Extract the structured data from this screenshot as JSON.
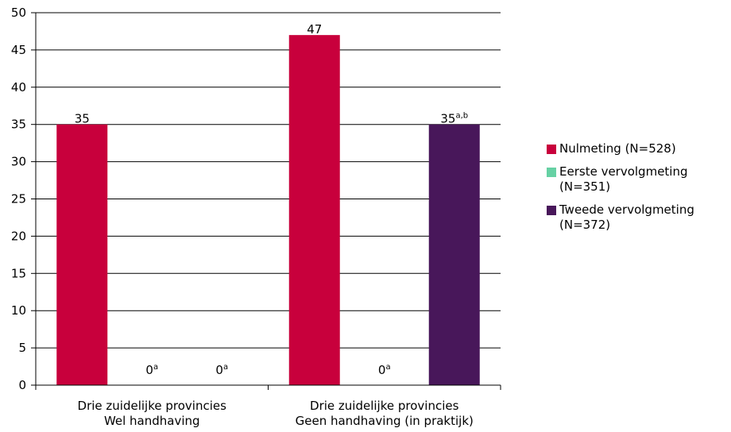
{
  "chart_data": {
    "type": "bar",
    "title": "",
    "xlabel": "",
    "ylabel": "",
    "ylim": [
      0,
      50
    ],
    "yticks": [
      "0",
      "5",
      "10",
      "15",
      "20",
      "25",
      "30",
      "35",
      "40",
      "45",
      "50"
    ],
    "grid": true,
    "legend_position": "right",
    "categories": [
      [
        "Drie zuidelijke provincies",
        "Wel handhaving"
      ],
      [
        "Drie zuidelijke provincies",
        "Geen handhaving (in praktijk)"
      ]
    ],
    "series": [
      {
        "name": "Nulmeting (N=528)",
        "color": "#c8003c",
        "values": [
          35,
          47
        ],
        "labels": [
          {
            "text": "35",
            "sup": ""
          },
          {
            "text": "47",
            "sup": ""
          }
        ]
      },
      {
        "name": "Eerste vervolgmeting (N=351)",
        "color": "#66d1a4",
        "values": [
          0,
          0
        ],
        "labels": [
          {
            "text": "0",
            "sup": "a"
          },
          {
            "text": "0",
            "sup": "a"
          }
        ]
      },
      {
        "name": "Tweede vervolgmeting (N=372)",
        "color": "#48175a",
        "values": [
          0,
          35
        ],
        "labels": [
          {
            "text": "0",
            "sup": "a"
          },
          {
            "text": "35",
            "sup": "a,b"
          }
        ]
      }
    ]
  },
  "legend": {
    "items": [
      {
        "line1": "Nulmeting (N=528)",
        "line2": ""
      },
      {
        "line1": "Eerste vervolgmeting",
        "line2": "(N=351)"
      },
      {
        "line1": "Tweede vervolgmeting",
        "line2": "(N=372)"
      }
    ]
  }
}
